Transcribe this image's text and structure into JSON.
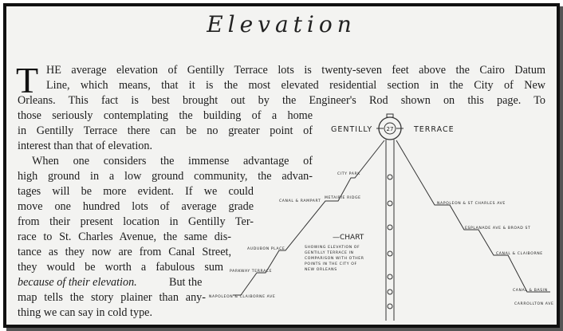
{
  "title": "Elevation",
  "drop_cap": "T",
  "lines": [
    "HE average elevation of Gentilly Terrace lots is twenty-seven feet above the Cairo Datum",
    "Line, which means, that it is the most elevated residential section in the City of New",
    "Orleans.  This fact is best brought out by the Engineer's Rod shown on this page.  To",
    "those seriously contemplating the building of a home",
    "in Gentilly Terrace there can be no greater point of",
    "interest than that of elevation.",
    "When one considers the immense advantage of",
    "high ground in a low ground community, the advan-",
    "tages will be more evident.  If we could",
    "move one hundred lots of average grade",
    "from their present location in Gentilly Ter-",
    "race to St. Charles Avenue, the same dis-",
    "tance as they now are from Canal Street,",
    "they would be worth a fabulous sum",
    "because of their elevation.",
    "But the",
    "map tells the story plainer than any-",
    "thing we can say in cold type."
  ],
  "chart": {
    "left_title": "GENTILLY",
    "right_title": "TERRACE",
    "rod_value": "27",
    "caption_title": "—CHART",
    "caption_lines": [
      "SHOWING ELEVATION OF",
      "GENTILLY TERRACE IN",
      "COMPARISON WITH OTHER",
      "POINTS IN THE CITY OF",
      "NEW ORLEANS"
    ],
    "left_points": [
      "CITY PARK",
      "METAIRIE RIDGE",
      "CANAL & RAMPART",
      "AUDUBON PLACE",
      "PARKWAY TERRACE",
      "NAPOLEON & CLAIBORNE AVE"
    ],
    "right_points": [
      "NAPOLEON & ST CHARLES AVE",
      "ESPLANADE AVE & BROAD ST",
      "CANAL & CLAIBORNE",
      "CANAL & BASIN",
      "CARROLLTON AVE"
    ]
  }
}
